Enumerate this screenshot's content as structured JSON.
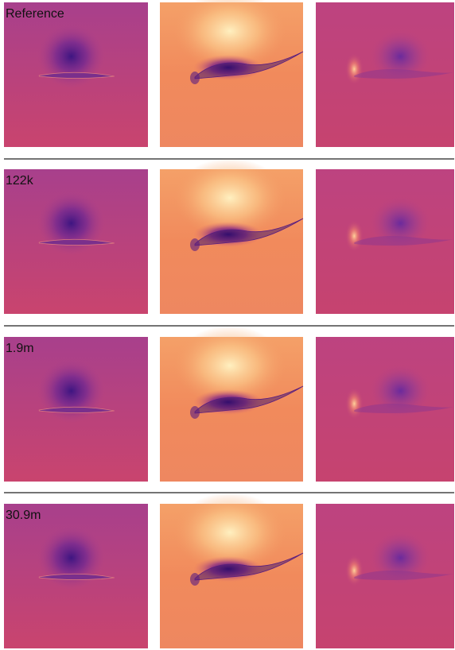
{
  "rows": [
    {
      "label": "Reference"
    },
    {
      "label": "122k"
    },
    {
      "label": "1.9m"
    },
    {
      "label": "30.9m"
    }
  ]
}
